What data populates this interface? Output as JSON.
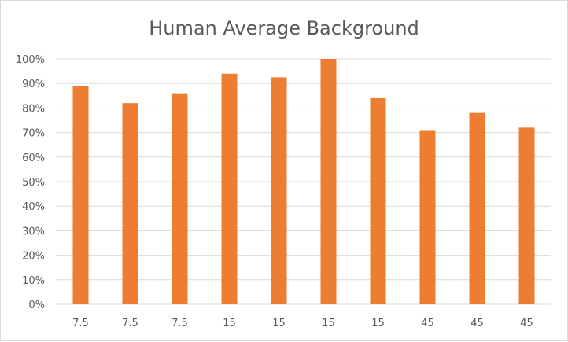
{
  "chart_data": {
    "type": "bar",
    "title": "Human Average Background",
    "xlabel": "",
    "ylabel": "",
    "categories": [
      "7.5",
      "7.5",
      "7.5",
      "15",
      "15",
      "15",
      "15",
      "45",
      "45",
      "45"
    ],
    "values": [
      0.89,
      0.82,
      0.86,
      0.94,
      0.925,
      1.0,
      0.84,
      0.71,
      0.78,
      0.72
    ],
    "ylim": [
      0,
      1
    ],
    "ytick_values": [
      0,
      0.1,
      0.2,
      0.3,
      0.4,
      0.5,
      0.6,
      0.7,
      0.8,
      0.9,
      1.0
    ],
    "ytick_labels": [
      "0%",
      "10%",
      "20%",
      "30%",
      "40%",
      "50%",
      "60%",
      "70%",
      "80%",
      "90%",
      "100%"
    ],
    "grid": true,
    "legend": "none",
    "bar_color": "#ED7D31"
  }
}
